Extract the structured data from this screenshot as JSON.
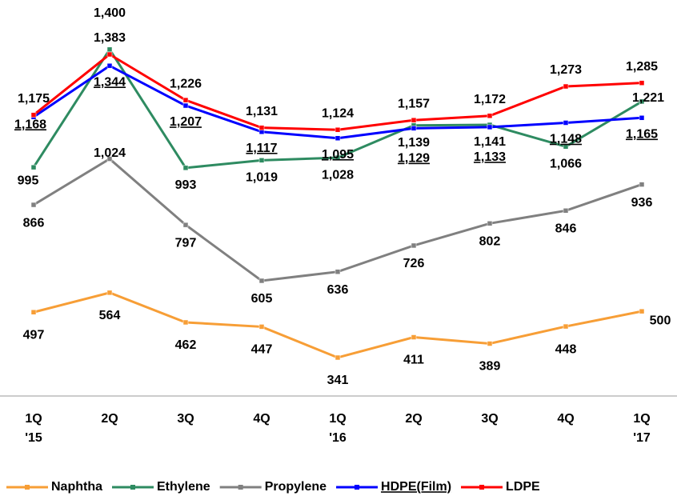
{
  "chart_data": {
    "type": "line",
    "categories": [
      "1Q\n'15",
      "2Q",
      "3Q",
      "4Q",
      "1Q\n'16",
      "2Q",
      "3Q",
      "4Q",
      "1Q\n'17"
    ],
    "ylim": [
      0,
      1570
    ],
    "series": [
      {
        "name": "Naphtha",
        "color": "#f79e36",
        "values": [
          497,
          564,
          462,
          447,
          341,
          411,
          389,
          448,
          500
        ],
        "value_labels": [
          "497",
          "564",
          "462",
          "447",
          "341",
          "411",
          "389",
          "448",
          "500"
        ]
      },
      {
        "name": "Ethylene",
        "color": "#2e8b61",
        "values": [
          995,
          1400,
          993,
          1019,
          1028,
          1139,
          1141,
          1066,
          1221
        ],
        "value_labels": [
          "995",
          "1,400",
          "993",
          "1,019",
          "1,028",
          "1,139",
          "1,141",
          "1,066",
          "1,221"
        ]
      },
      {
        "name": "Propylene",
        "color": "#808080",
        "values": [
          866,
          1024,
          797,
          605,
          636,
          726,
          802,
          846,
          936
        ],
        "value_labels": [
          "866",
          "1,024",
          "797",
          "605",
          "636",
          "726",
          "802",
          "846",
          "936"
        ]
      },
      {
        "name": "HDPE(Film)",
        "color": "#0000ff",
        "values": [
          1168,
          1344,
          1207,
          1117,
          1095,
          1129,
          1133,
          1148,
          1165
        ],
        "value_labels": [
          "1,168",
          "1,344",
          "1,207",
          "1,117",
          "1,095",
          "1,129",
          "1,133",
          "1,148",
          "1,165"
        ]
      },
      {
        "name": "LDPE",
        "color": "#ff0000",
        "values": [
          1175,
          1383,
          1226,
          1131,
          1124,
          1157,
          1172,
          1273,
          1285
        ],
        "value_labels": [
          "1,175",
          "1,383",
          "1,226",
          "1,131",
          "1,124",
          "1,157",
          "1,172",
          "1,273",
          "1,285"
        ]
      }
    ]
  }
}
